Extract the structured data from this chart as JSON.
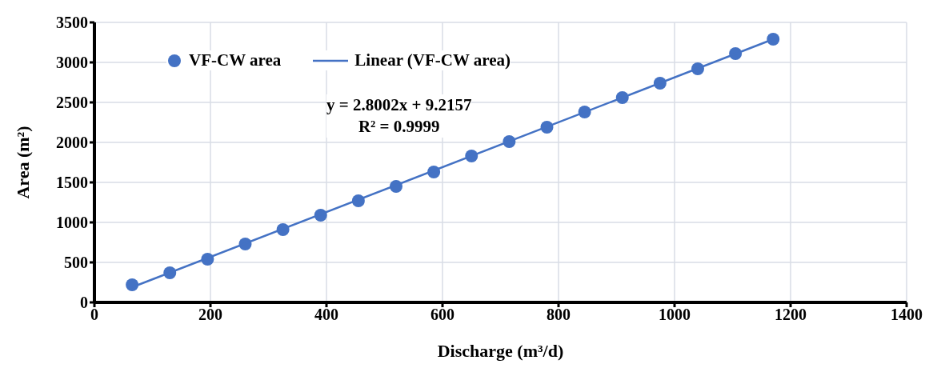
{
  "chart_data": {
    "type": "scatter",
    "xlabel": "Discharge (m³/d)",
    "ylabel": "Area (m²)",
    "x": [
      65,
      130,
      195,
      260,
      325,
      390,
      455,
      520,
      585,
      650,
      715,
      780,
      845,
      910,
      975,
      1040,
      1105,
      1170
    ],
    "series": [
      {
        "name": "VF-CW area",
        "color": "#4472c4",
        "marker": "circle",
        "values": [
          220,
          370,
          540,
          730,
          910,
          1090,
          1270,
          1450,
          1630,
          1830,
          2010,
          2190,
          2380,
          2560,
          2740,
          2920,
          3110,
          3290
        ]
      },
      {
        "name": "Linear (VF-CW area)",
        "type": "line",
        "color": "#4472c4",
        "marker": "none",
        "line_style": "solid",
        "x": [
          65,
          1170
        ],
        "values": [
          190,
          3290
        ]
      }
    ],
    "annotations": [
      "y = 2.8002x + 9.2157",
      "R² = 0.9999"
    ],
    "xlim": [
      0,
      1400
    ],
    "xticks": [
      0,
      200,
      400,
      600,
      800,
      1000,
      1200,
      1400
    ],
    "ylim": [
      0,
      3500
    ],
    "yticks": [
      0,
      500,
      1000,
      1500,
      2000,
      2500,
      3000,
      3500
    ],
    "grid": true,
    "legend": "top left"
  }
}
